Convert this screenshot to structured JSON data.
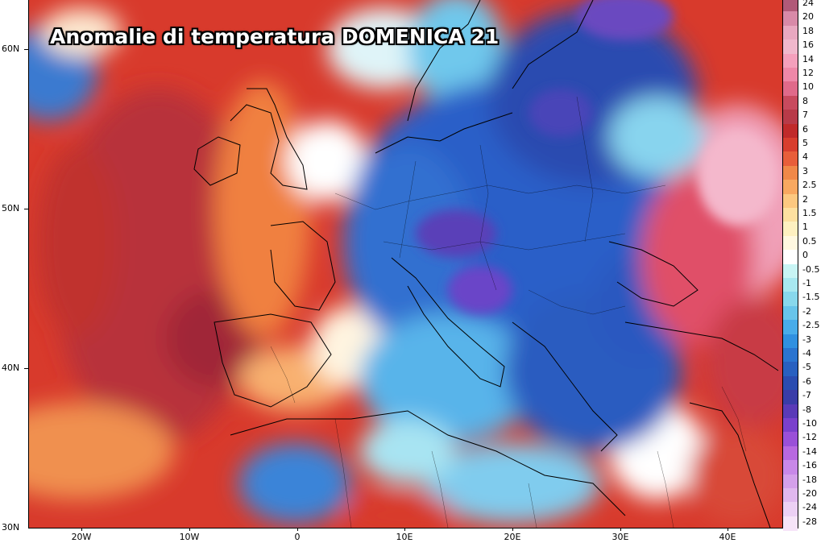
{
  "title": "Anomalie di temperatura DOMENICA 21",
  "axes": {
    "y_labels": [
      "60N",
      "50N",
      "40N",
      "30N"
    ],
    "x_labels": [
      "20W",
      "10W",
      "0",
      "10E",
      "20E",
      "30E",
      "40E"
    ]
  },
  "legend": {
    "labels": [
      "24",
      "20",
      "18",
      "16",
      "14",
      "12",
      "10",
      "8",
      "7",
      "6",
      "5",
      "4",
      "3",
      "2.5",
      "2",
      "1.5",
      "1",
      "0.5",
      "0",
      "-0.5",
      "-1",
      "-1.5",
      "-2",
      "-2.5",
      "-3",
      "-4",
      "-5",
      "-6",
      "-7",
      "-8",
      "-10",
      "-12",
      "-14",
      "-16",
      "-18",
      "-20",
      "-24",
      "-28"
    ],
    "colors": [
      "#b05a78",
      "#d88aa8",
      "#e8a8c0",
      "#f0b8cc",
      "#f4a0bc",
      "#ee88a8",
      "#e06a8a",
      "#c84a5e",
      "#b83a48",
      "#c02a2a",
      "#d83e2e",
      "#e85e3a",
      "#f08848",
      "#f8a860",
      "#fcc880",
      "#fde0a0",
      "#fef0c0",
      "#fff8e0",
      "#ffffff",
      "#c8f4f4",
      "#a8e8f0",
      "#88d8ec",
      "#68c4ea",
      "#48acea",
      "#3090e0",
      "#2a74d0",
      "#2860c0",
      "#2a4cb0",
      "#3a3ca8",
      "#5a3ab8",
      "#7a40cc",
      "#9a50d8",
      "#b868e0",
      "#c888e8",
      "#d4a0ea",
      "#e0b8ee",
      "#ecd0f4",
      "#f6e4f8"
    ]
  },
  "colors": {
    "ocean_warm": "#d8382c",
    "deep_red": "#b83038",
    "cold": "#2a5cc8",
    "very_cold": "#6a44c8"
  }
}
